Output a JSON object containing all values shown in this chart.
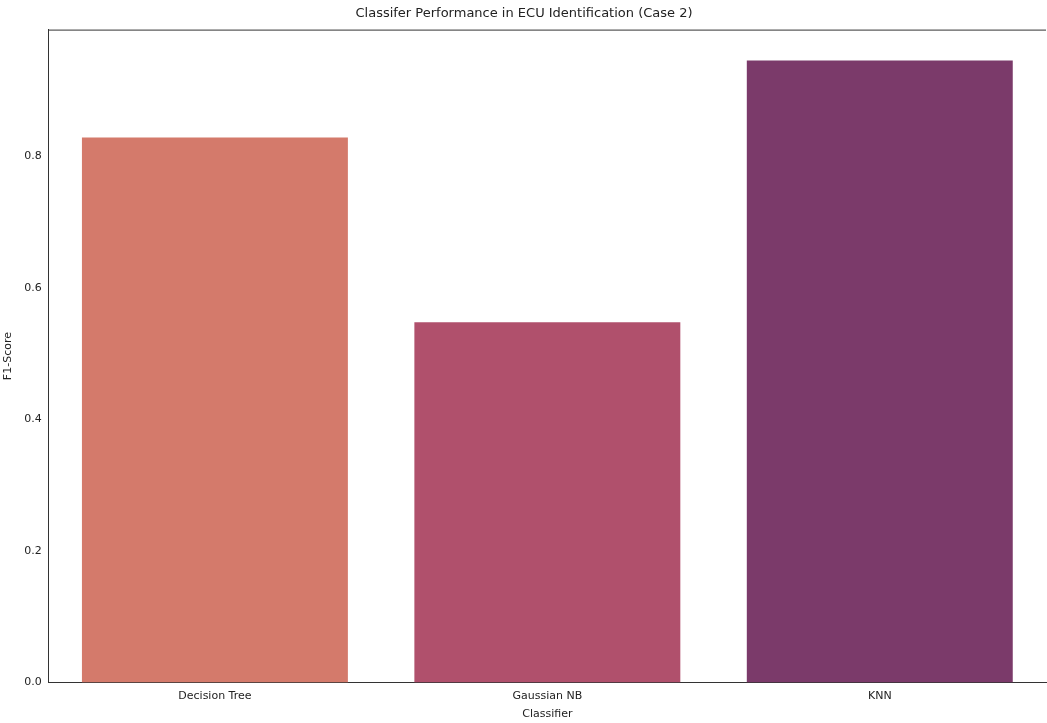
{
  "chart_data": {
    "type": "bar",
    "title": "Classifer Performance in ECU Identification (Case 2)",
    "xlabel": "Classifier",
    "ylabel": "F1-Score",
    "categories": [
      "Decision Tree",
      "Gaussian NB",
      "KNN"
    ],
    "values": [
      0.829,
      0.548,
      0.946
    ],
    "colors": [
      "#d47a6b",
      "#b0506c",
      "#7b3a6a"
    ],
    "ylim": [
      0,
      0.993
    ],
    "yticks": [
      {
        "value": 0,
        "label": "0.0"
      },
      {
        "value": 0.2,
        "label": "0.2"
      },
      {
        "value": 0.4,
        "label": "0.4"
      },
      {
        "value": 0.6,
        "label": "0.6"
      },
      {
        "value": 0.8,
        "label": "0.8"
      }
    ],
    "grid": false,
    "legend": false
  }
}
